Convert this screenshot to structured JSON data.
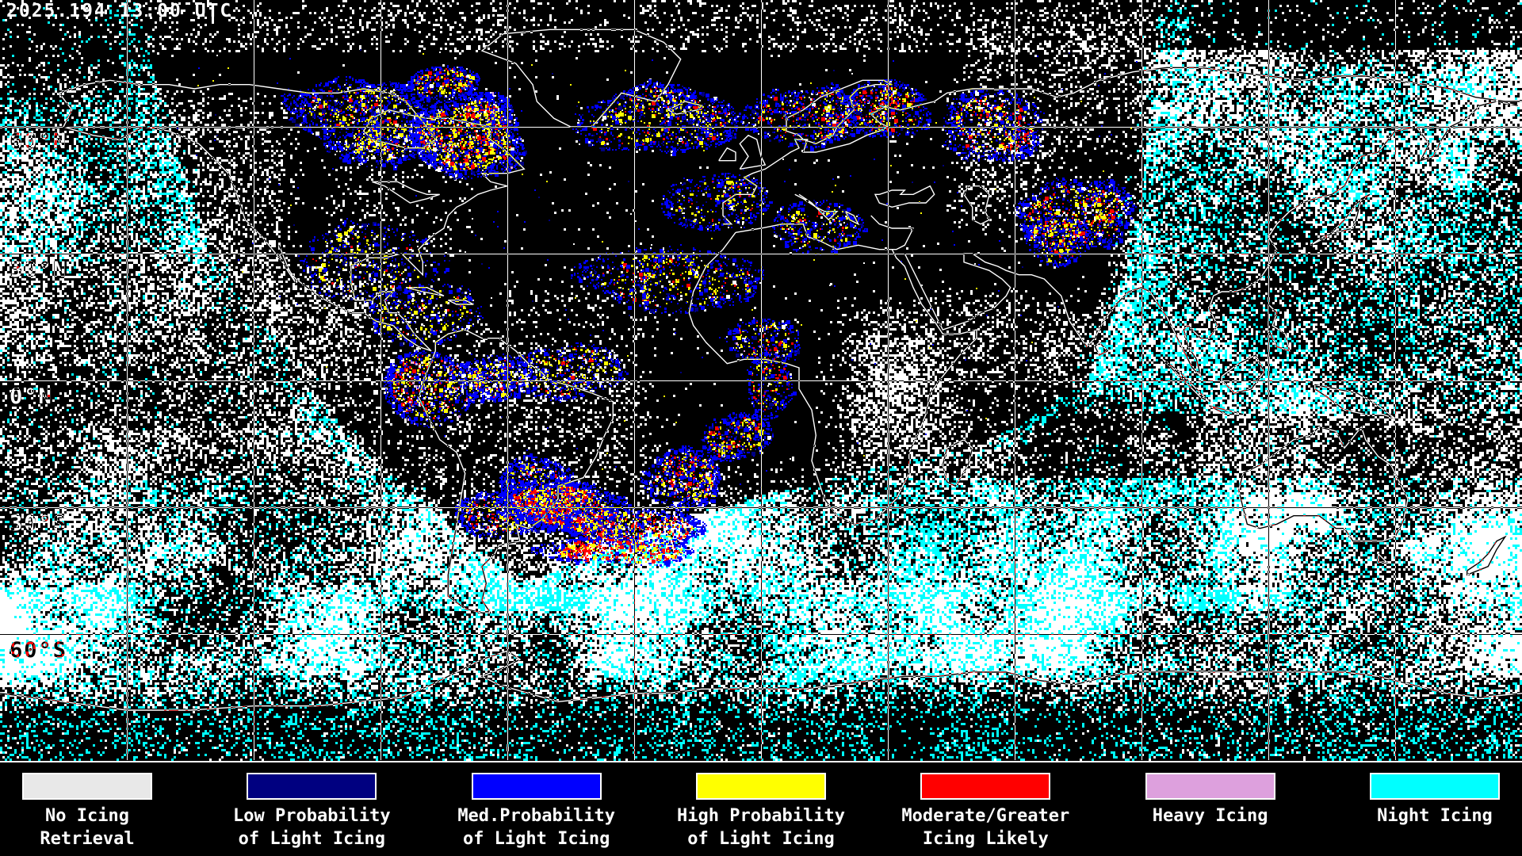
{
  "header": {
    "timestamp": "2025.194 13:00 UTC"
  },
  "map": {
    "latitude_labels": [
      "60°N",
      "30°N",
      "0°N",
      "30°S",
      "60°S"
    ],
    "grid": {
      "lat_step_deg": 30,
      "lon_step_deg": 30
    },
    "background_color": "#000000",
    "coastline_color": "#ffffff",
    "cloud_color": "#ffffff",
    "night_color": "#00ffff"
  },
  "legend": {
    "items": [
      {
        "name": "no-icing-retrieval",
        "color": "#e8e8e8",
        "lines": [
          "No Icing",
          "Retrieval"
        ]
      },
      {
        "name": "low-prob-light-icing",
        "color": "#000080",
        "lines": [
          "Low Probability",
          "of Light Icing"
        ]
      },
      {
        "name": "med-prob-light-icing",
        "color": "#0000ff",
        "lines": [
          "Med.Probability",
          "of Light Icing"
        ]
      },
      {
        "name": "high-prob-light-icing",
        "color": "#ffff00",
        "lines": [
          "High Probability",
          "of Light Icing"
        ]
      },
      {
        "name": "moderate-greater-icing",
        "color": "#ff0000",
        "lines": [
          "Moderate/Greater",
          "Icing Likely"
        ]
      },
      {
        "name": "heavy-icing",
        "color": "#dda0dd",
        "lines": [
          "Heavy Icing"
        ]
      },
      {
        "name": "night-icing",
        "color": "#00ffff",
        "lines": [
          "Night Icing"
        ]
      }
    ]
  }
}
